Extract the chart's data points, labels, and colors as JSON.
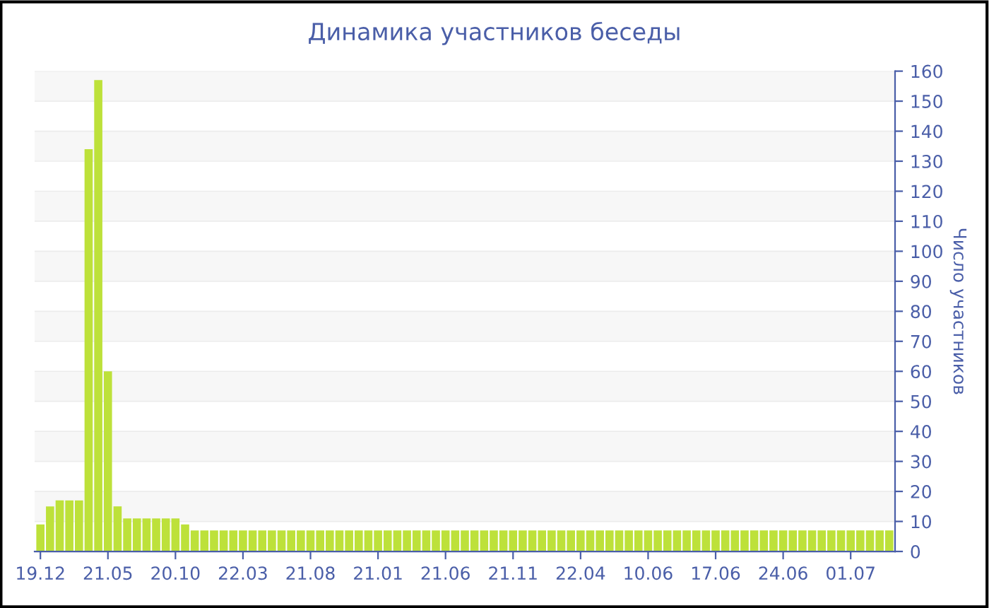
{
  "chart_data": {
    "type": "bar",
    "title": "Динамика участников беседы",
    "ylabel": "Число участников",
    "categories": [
      "19.12",
      null,
      null,
      null,
      null,
      null,
      null,
      "21.05",
      null,
      null,
      null,
      null,
      null,
      null,
      "20.10",
      null,
      null,
      null,
      null,
      null,
      null,
      "22.03",
      null,
      null,
      null,
      null,
      null,
      null,
      "21.08",
      null,
      null,
      null,
      null,
      null,
      null,
      "21.01",
      null,
      null,
      null,
      null,
      null,
      null,
      "21.06",
      null,
      null,
      null,
      null,
      null,
      null,
      "21.11",
      null,
      null,
      null,
      null,
      null,
      null,
      "22.04",
      null,
      null,
      null,
      null,
      null,
      null,
      "10.06",
      null,
      null,
      null,
      null,
      null,
      null,
      "17.06",
      null,
      null,
      null,
      null,
      null,
      null,
      "24.06",
      null,
      null,
      null,
      null,
      null,
      null,
      "01.07",
      null,
      null,
      null,
      null
    ],
    "values": [
      9,
      15,
      17,
      17,
      17,
      134,
      157,
      60,
      15,
      11,
      11,
      11,
      11,
      11,
      11,
      9,
      7,
      7,
      7,
      7,
      7,
      7,
      7,
      7,
      7,
      7,
      7,
      7,
      7,
      7,
      7,
      7,
      7,
      7,
      7,
      7,
      7,
      7,
      7,
      7,
      7,
      7,
      7,
      7,
      7,
      7,
      7,
      7,
      7,
      7,
      7,
      7,
      7,
      7,
      7,
      7,
      7,
      7,
      7,
      7,
      7,
      7,
      7,
      7,
      7,
      7,
      7,
      7,
      7,
      7,
      7,
      7,
      7,
      7,
      7,
      7,
      7,
      7,
      7,
      7,
      7,
      7,
      7,
      7,
      7,
      7,
      7,
      7,
      7
    ],
    "color": "#bde13a",
    "ylim": [
      0,
      160
    ],
    "yticks": [
      0,
      10,
      20,
      30,
      40,
      50,
      60,
      70,
      80,
      90,
      100,
      110,
      120,
      130,
      140,
      150,
      160
    ],
    "grid": "y"
  }
}
